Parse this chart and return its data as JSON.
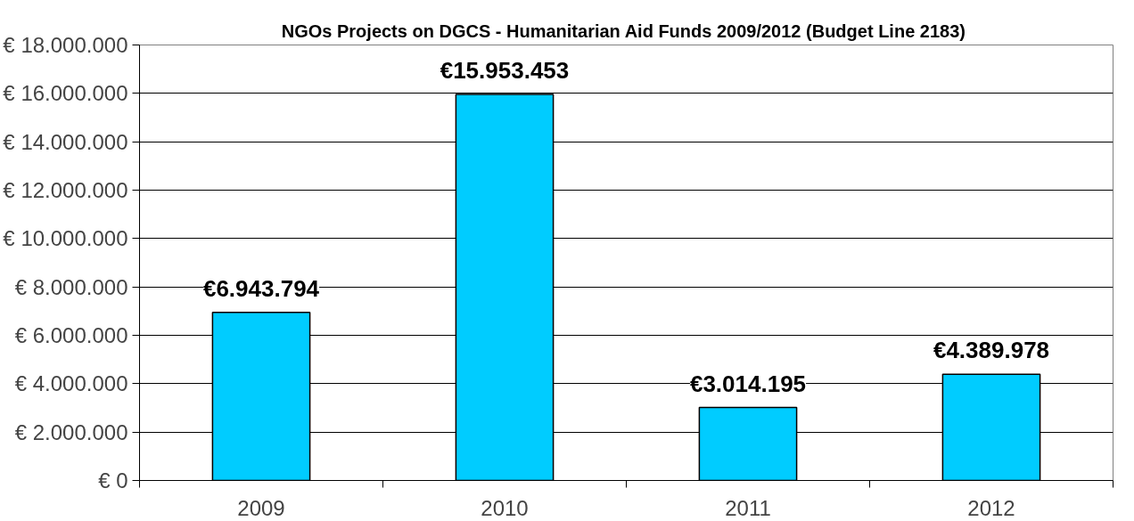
{
  "chart_data": {
    "type": "bar",
    "title": "NGOs Projects on DGCS - Humanitarian Aid Funds 2009/2012 (Budget  Line 2183)",
    "categories": [
      "2009",
      "2010",
      "2011",
      "2012"
    ],
    "values": [
      6943794,
      15953453,
      3014195,
      4389978
    ],
    "value_labels": [
      "€6.943.794",
      "€15.953.453",
      "€3.014.195",
      "€4.389.978"
    ],
    "color": "#00ccff",
    "ylim": [
      0,
      18000000
    ],
    "yticks": [
      {
        "value": 0,
        "label": "€ 0"
      },
      {
        "value": 2000000,
        "label": "€ 2.000.000"
      },
      {
        "value": 4000000,
        "label": "€ 4.000.000"
      },
      {
        "value": 6000000,
        "label": "€ 6.000.000"
      },
      {
        "value": 8000000,
        "label": "€ 8.000.000"
      },
      {
        "value": 10000000,
        "label": "€ 10.000.000"
      },
      {
        "value": 12000000,
        "label": "€ 12.000.000"
      },
      {
        "value": 14000000,
        "label": "€ 14.000.000"
      },
      {
        "value": 16000000,
        "label": "€ 16.000.000"
      },
      {
        "value": 18000000,
        "label": "€ 18.000.000"
      }
    ],
    "grid": "y"
  }
}
